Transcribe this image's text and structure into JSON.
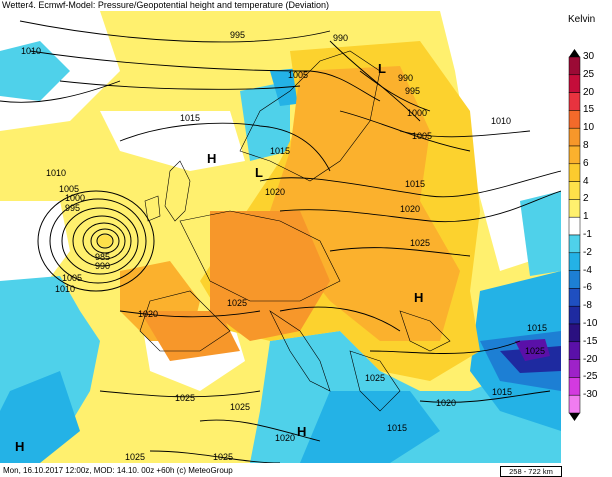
{
  "header": {
    "title": "Wetter4. Ecmwf-Model: Pressure/Geopotential height and temperature (Deviation)"
  },
  "footer": {
    "text": "Mon, 16.10.2017 12:00z, MOD: 14.10. 00z +60h (c) MeteoGroup",
    "scale": "258 - 722 km"
  },
  "legend": {
    "unit": "Kelvin",
    "levels": [
      {
        "label": "30",
        "color": "#9b0a35"
      },
      {
        "label": "25",
        "color": "#c40d3a"
      },
      {
        "label": "20",
        "color": "#e8333f"
      },
      {
        "label": "15",
        "color": "#f36a2a"
      },
      {
        "label": "10",
        "color": "#f7972a"
      },
      {
        "label": "8",
        "color": "#fbb12d"
      },
      {
        "label": "6",
        "color": "#fccb2e"
      },
      {
        "label": "4",
        "color": "#ffe14a"
      },
      {
        "label": "2",
        "color": "#fff06e"
      },
      {
        "label": "1",
        "color": "#ffffff"
      },
      {
        "label": "-1",
        "color": "#4fd1ea"
      },
      {
        "label": "-2",
        "color": "#24b2e6"
      },
      {
        "label": "-4",
        "color": "#1d7fd4"
      },
      {
        "label": "-6",
        "color": "#1f4fc0"
      },
      {
        "label": "-8",
        "color": "#1e2aa0"
      },
      {
        "label": "-10",
        "color": "#2a1080"
      },
      {
        "label": "-15",
        "color": "#5a10a8"
      },
      {
        "label": "-20",
        "color": "#9e22c8"
      },
      {
        "label": "-25",
        "color": "#d33ae0"
      },
      {
        "label": "-30",
        "color": "#f07cf0"
      }
    ]
  },
  "map": {
    "isobar_labels": [
      "995",
      "990",
      "1010",
      "1005",
      "1015",
      "990",
      "995",
      "1000",
      "1005",
      "1010",
      "1015",
      "1020",
      "1015",
      "1020",
      "1025",
      "1010",
      "1005",
      "1000",
      "995",
      "985",
      "990",
      "1005",
      "1010",
      "1020",
      "1025",
      "1025",
      "1015",
      "1025",
      "1020",
      "1015",
      "1025",
      "1025",
      "1020",
      "1025",
      "1025",
      "1015"
    ],
    "pressure_centers": [
      {
        "label": "L"
      },
      {
        "label": "H"
      },
      {
        "label": "L"
      },
      {
        "label": "H"
      },
      {
        "label": "H"
      },
      {
        "label": "H"
      }
    ]
  }
}
